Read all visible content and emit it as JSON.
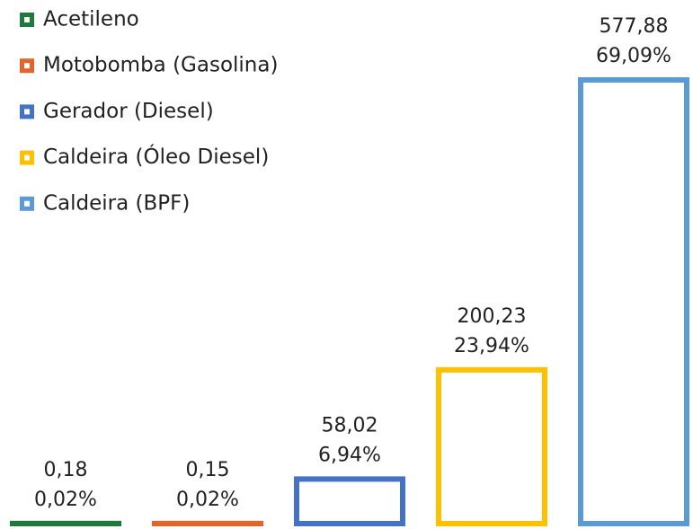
{
  "chart_data": {
    "type": "bar",
    "categories": [
      "Acetileno",
      "Motobomba (Gasolina)",
      "Gerador (Diesel)",
      "Caldeira (Óleo Diesel)",
      "Caldeira (BPF)"
    ],
    "values": [
      0.18,
      0.15,
      58.02,
      200.23,
      577.88
    ],
    "value_labels": [
      "0,18",
      "0,15",
      "58,02",
      "200,23",
      "577,88"
    ],
    "shares": [
      0.02,
      0.02,
      6.94,
      23.94,
      69.09
    ],
    "share_labels": [
      "0,02%",
      "0,02%",
      "6,94%",
      "23,94%",
      "69,09%"
    ],
    "colors": [
      "#1e7a3c",
      "#e2662c",
      "#4472c4",
      "#ffc000",
      "#5b9bd5"
    ],
    "legend": "top-left"
  }
}
